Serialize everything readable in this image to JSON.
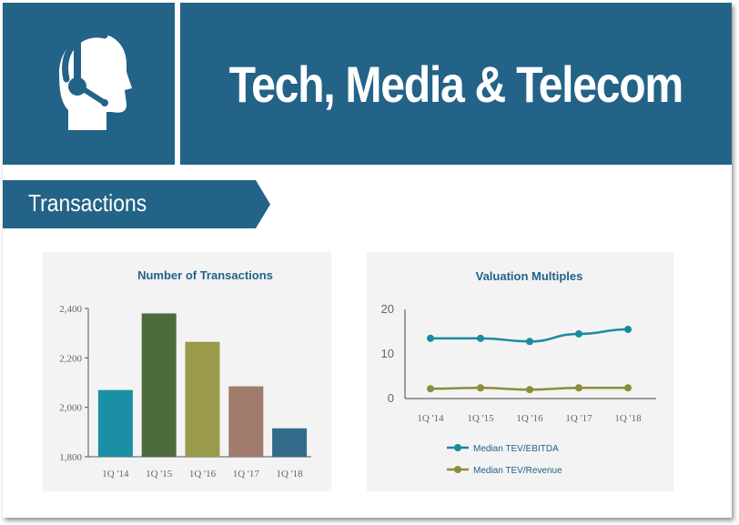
{
  "header": {
    "title": "Tech, Media & Telecom",
    "icon": "headset-support-icon",
    "color": "#236387"
  },
  "section": {
    "label": "Transactions"
  },
  "chart_data": [
    {
      "type": "bar",
      "title": "Number of Transactions",
      "categories": [
        "1Q '14",
        "1Q '15",
        "1Q '16",
        "1Q '17",
        "1Q '18"
      ],
      "values": [
        2070,
        2380,
        2265,
        2085,
        1915
      ],
      "colors": [
        "#1a8fa5",
        "#4e6b3c",
        "#9a9a4b",
        "#a07b6c",
        "#346b8a"
      ],
      "ylim": [
        1800,
        2400
      ],
      "yticks": [
        1800,
        2000,
        2200,
        2400
      ],
      "ytick_labels": [
        "1,800",
        "2,000",
        "2,200",
        "2,400"
      ],
      "xlabel": "",
      "ylabel": "",
      "grid": false
    },
    {
      "type": "line",
      "title": "Valuation Multiples",
      "categories": [
        "1Q '14",
        "1Q '15",
        "1Q '16",
        "1Q '17",
        "1Q '18"
      ],
      "series": [
        {
          "name": "Median TEV/EBITDA",
          "values": [
            13.5,
            13.5,
            12.8,
            14.5,
            15.5
          ],
          "color": "#1a8aa2"
        },
        {
          "name": "Median TEV/Revenue",
          "values": [
            2.2,
            2.4,
            2.0,
            2.4,
            2.4
          ],
          "color": "#8c8c3a"
        }
      ],
      "ylim": [
        0,
        20
      ],
      "yticks": [
        0,
        10,
        20
      ],
      "legend": "bottom",
      "xlabel": "",
      "ylabel": "",
      "grid": false
    }
  ]
}
